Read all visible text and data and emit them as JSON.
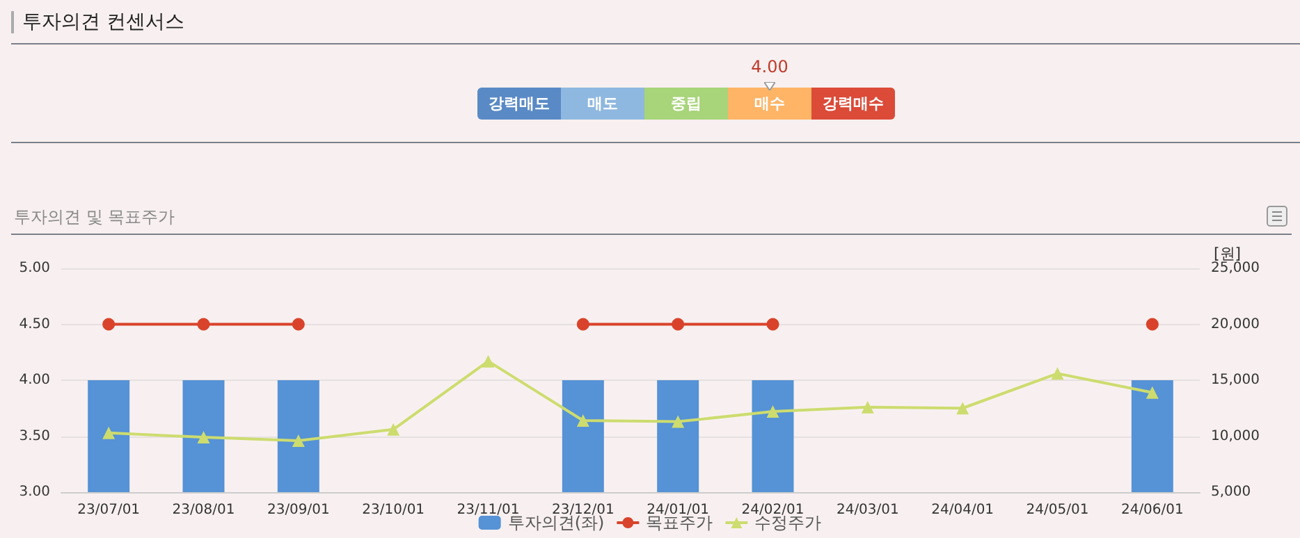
{
  "chart_data": [
    {
      "type": "other",
      "title": "투자의견 컨센서스",
      "categories": [
        "강력매도",
        "매도",
        "중립",
        "매수",
        "강력매수"
      ],
      "colors": [
        "#5a8ac6",
        "#8fb8e0",
        "#a8d47a",
        "#ffb466",
        "#dc4a38"
      ],
      "annotations": [
        {
          "text": "4.00",
          "x": "매수"
        }
      ]
    },
    {
      "type": "bar",
      "title": "투자의견 및 목표주가",
      "y2label": "[원]",
      "categories": [
        "23/07/01",
        "23/08/01",
        "23/09/01",
        "23/10/01",
        "23/11/01",
        "23/12/01",
        "24/01/01",
        "24/02/01",
        "24/03/01",
        "24/04/01",
        "24/05/01",
        "24/06/01"
      ],
      "series": [
        {
          "name": "투자의견(좌)",
          "type": "bar",
          "color": "#5592d6",
          "values": [
            4,
            4,
            4,
            null,
            null,
            4,
            4,
            4,
            null,
            null,
            null,
            4
          ]
        },
        {
          "name": "목표주가",
          "type": "line",
          "axis": "y2",
          "color": "#d9432b",
          "marker": "circle",
          "values": [
            20000,
            20000,
            20000,
            null,
            null,
            20000,
            20000,
            20000,
            null,
            null,
            null,
            20000
          ]
        },
        {
          "name": "수정주가",
          "type": "line",
          "axis": "y2",
          "color": "#cddc6e",
          "marker": "triangle",
          "values": [
            10300,
            9900,
            9600,
            10600,
            16700,
            11400,
            11300,
            12200,
            12600,
            12500,
            15600,
            13900
          ]
        }
      ],
      "ylim": [
        3,
        5
      ],
      "yticks": [
        {
          "value": 3,
          "label": "3.00"
        },
        {
          "value": 3.5,
          "label": "3.50"
        },
        {
          "value": 4,
          "label": "4.00"
        },
        {
          "value": 4.5,
          "label": "4.50"
        },
        {
          "value": 5,
          "label": "5.00"
        }
      ],
      "y2lim": [
        5000,
        25000
      ],
      "y2ticks": [
        {
          "value": 5000,
          "label": "5,000"
        },
        {
          "value": 10000,
          "label": "10,000"
        },
        {
          "value": 15000,
          "label": "15,000"
        },
        {
          "value": 20000,
          "label": "20,000"
        },
        {
          "value": 25000,
          "label": "25,000"
        }
      ],
      "grid": "y",
      "legend": "bottom",
      "line_style": "solid"
    }
  ]
}
